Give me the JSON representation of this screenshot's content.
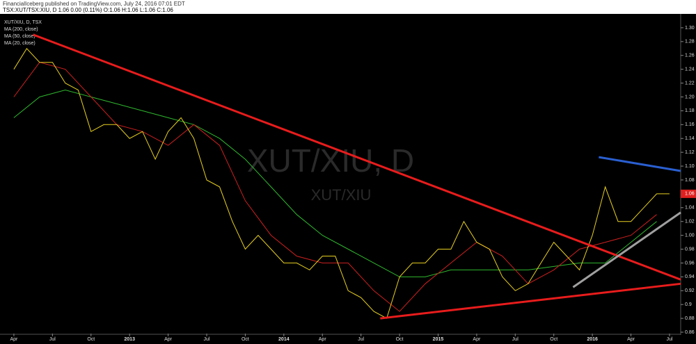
{
  "chart_data": {
    "type": "line",
    "header": "FinancialIceberg published on TradingView.com, July 24, 2016 07:01 EDT",
    "quote": "TSX:XUT/TSX:XIU, D  1.06  0.00 (0.11%)  O:1.06 H:1.06 L:1.06 C:1.06",
    "symbol": "XUT/XIU, D, TSX",
    "watermark": "XUT/XIU, D",
    "watermark_sub": "XUT/XIU",
    "last_price": 1.06,
    "last_price_color": "#e02020",
    "xlim": [
      -1.08,
      51.87
    ],
    "ylim": [
      0.858,
      1.319
    ],
    "xticks": [
      {
        "value": 0,
        "label": "Apr"
      },
      {
        "value": 3,
        "label": "Jul"
      },
      {
        "value": 6,
        "label": "Oct"
      },
      {
        "value": 9,
        "label": "2013"
      },
      {
        "value": 12,
        "label": "Apr"
      },
      {
        "value": 15,
        "label": "Jul"
      },
      {
        "value": 18,
        "label": "Oct"
      },
      {
        "value": 21,
        "label": "2014"
      },
      {
        "value": 24,
        "label": "Apr"
      },
      {
        "value": 27,
        "label": "Jul"
      },
      {
        "value": 30,
        "label": "Oct"
      },
      {
        "value": 33,
        "label": "2015"
      },
      {
        "value": 36,
        "label": "Apr"
      },
      {
        "value": 39,
        "label": "Jul"
      },
      {
        "value": 42,
        "label": "Oct"
      },
      {
        "value": 45,
        "label": "2016"
      },
      {
        "value": 48,
        "label": "Apr"
      },
      {
        "value": 51,
        "label": "Jul"
      }
    ],
    "yticks": [
      0.86,
      0.88,
      0.9,
      0.92,
      0.94,
      0.96,
      0.98,
      {
        "value": 1.0,
        "label": "1.00"
      },
      1.02,
      1.04,
      1.06,
      1.08,
      {
        "value": 1.1,
        "label": "1.10"
      },
      1.12,
      1.14,
      1.16,
      1.18,
      {
        "value": 1.2,
        "label": "1.20"
      },
      1.22,
      1.24,
      1.26,
      1.28,
      {
        "value": 1.3,
        "label": "1.30"
      }
    ],
    "series": [
      {
        "name": "MA (200, close)",
        "color": "#2fb82f",
        "x": [
          0,
          2,
          4,
          6,
          8,
          10,
          12,
          14,
          16,
          18,
          20,
          22,
          24,
          26,
          28,
          30,
          32,
          34,
          36,
          38,
          40,
          42,
          44,
          46,
          48,
          50
        ],
        "values": [
          1.17,
          1.2,
          1.21,
          1.2,
          1.19,
          1.18,
          1.17,
          1.16,
          1.14,
          1.11,
          1.07,
          1.03,
          1.0,
          0.98,
          0.96,
          0.94,
          0.94,
          0.95,
          0.95,
          0.95,
          0.95,
          0.955,
          0.96,
          0.96,
          0.99,
          1.02
        ]
      },
      {
        "name": "MA (50, close)",
        "color": "#d02020",
        "x": [
          0,
          2,
          4,
          6,
          8,
          10,
          12,
          14,
          16,
          18,
          20,
          22,
          24,
          26,
          28,
          30,
          32,
          34,
          36,
          38,
          40,
          42,
          44,
          46,
          48,
          50
        ],
        "values": [
          1.2,
          1.25,
          1.24,
          1.2,
          1.16,
          1.15,
          1.13,
          1.16,
          1.13,
          1.05,
          1.0,
          0.97,
          0.96,
          0.96,
          0.92,
          0.89,
          0.93,
          0.96,
          0.99,
          0.97,
          0.93,
          0.95,
          0.98,
          0.99,
          1.0,
          1.03
        ]
      },
      {
        "name": "MA (20, close)",
        "color": "#e8d020",
        "x": [
          0,
          1,
          2,
          3,
          4,
          5,
          6,
          7,
          8,
          9,
          10,
          11,
          12,
          13,
          14,
          15,
          16,
          17,
          18,
          19,
          20,
          21,
          22,
          23,
          24,
          25,
          26,
          27,
          28,
          29,
          30,
          31,
          32,
          33,
          34,
          35,
          36,
          37,
          38,
          39,
          40,
          41,
          42,
          43,
          44,
          45,
          46,
          47,
          48,
          49,
          50,
          51
        ],
        "values": [
          1.24,
          1.27,
          1.25,
          1.25,
          1.22,
          1.21,
          1.15,
          1.16,
          1.16,
          1.14,
          1.15,
          1.11,
          1.15,
          1.17,
          1.14,
          1.08,
          1.07,
          1.02,
          0.98,
          1.0,
          0.98,
          0.96,
          0.96,
          0.95,
          0.97,
          0.97,
          0.92,
          0.91,
          0.89,
          0.88,
          0.94,
          0.96,
          0.96,
          0.98,
          0.98,
          1.02,
          0.99,
          0.98,
          0.94,
          0.92,
          0.93,
          0.96,
          0.99,
          0.97,
          0.95,
          1.0,
          1.07,
          1.02,
          1.02,
          1.04,
          1.06,
          1.06
        ]
      }
    ],
    "trendlines": [
      {
        "color": "#e81c1c",
        "x": [
          1.5,
          51.87
        ],
        "y": [
          1.29,
          0.936
        ]
      },
      {
        "color": "#e81c1c",
        "x": [
          28.5,
          51.87
        ],
        "y": [
          0.88,
          0.93
        ]
      },
      {
        "color": "#2a5fd0",
        "x": [
          45.5,
          51.87
        ],
        "y": [
          1.113,
          1.093
        ]
      },
      {
        "color": "#a0a0a0",
        "x": [
          43.5,
          51.87
        ],
        "y": [
          0.925,
          1.033
        ]
      }
    ]
  }
}
